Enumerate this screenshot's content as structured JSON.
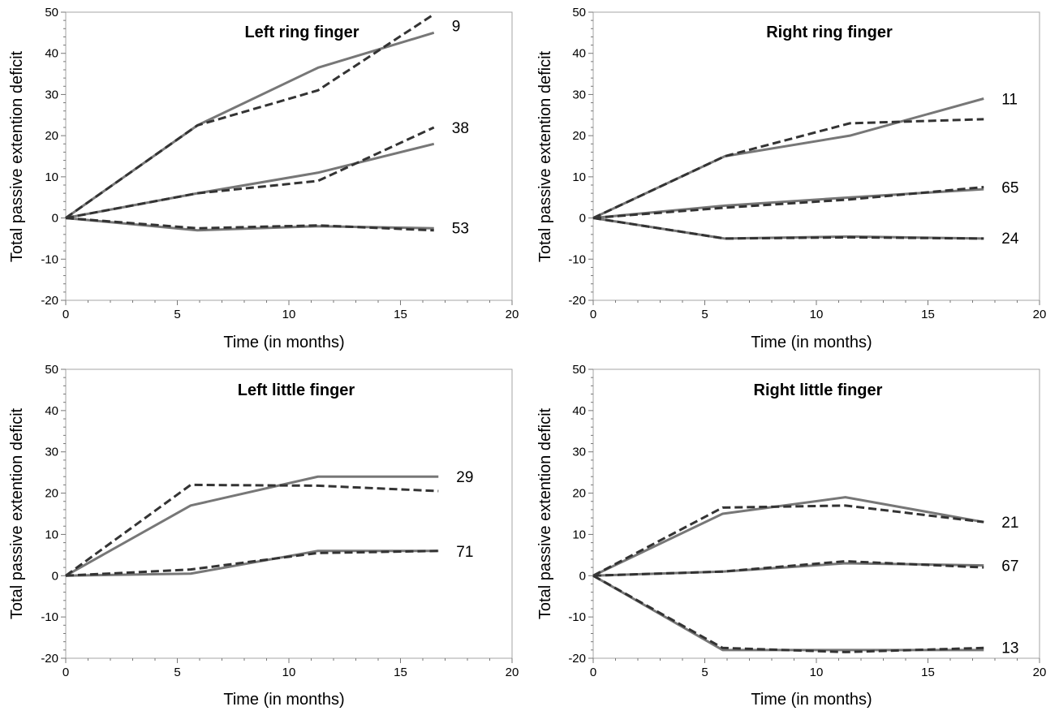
{
  "panels": [
    {
      "title": "Left ring finger",
      "xlabel": "Time (in months)",
      "ylabel": "Total passive extention deficit",
      "xlim": [
        0,
        20
      ],
      "ylim": [
        -20,
        50
      ],
      "xticks": [
        0,
        5,
        10,
        15,
        20
      ],
      "yticks": [
        -20,
        -10,
        0,
        10,
        20,
        30,
        40,
        50
      ]
    },
    {
      "title": "Right ring finger",
      "xlabel": "Time (in months)",
      "ylabel": "Total passive extention deficit",
      "xlim": [
        0,
        20
      ],
      "ylim": [
        -20,
        50
      ],
      "xticks": [
        0,
        5,
        10,
        15,
        20
      ],
      "yticks": [
        -20,
        -10,
        0,
        10,
        20,
        30,
        40,
        50
      ]
    },
    {
      "title": "Left little finger",
      "xlabel": "Time (in months)",
      "ylabel": "Total passive extention deficit",
      "xlim": [
        0,
        20
      ],
      "ylim": [
        -20,
        50
      ],
      "xticks": [
        0,
        5,
        10,
        15,
        20
      ],
      "yticks": [
        -20,
        -10,
        0,
        10,
        20,
        30,
        40,
        50
      ]
    },
    {
      "title": "Right little finger",
      "xlabel": "Time (in months)",
      "ylabel": "Total passive extention deficit",
      "xlim": [
        0,
        20
      ],
      "ylim": [
        -20,
        50
      ],
      "xticks": [
        0,
        5,
        10,
        15,
        20
      ],
      "yticks": [
        -20,
        -10,
        0,
        10,
        20,
        30,
        40,
        50
      ]
    }
  ],
  "chart_data": [
    {
      "type": "line",
      "title": "Left ring finger",
      "xlabel": "Time (in months)",
      "ylabel": "Total passive extention deficit",
      "xlim": [
        0,
        20
      ],
      "ylim": [
        -20,
        50
      ],
      "grid": false,
      "series": [
        {
          "label": "9",
          "solid_x": [
            0,
            5.9,
            11.3,
            16.5
          ],
          "solid_y": [
            0,
            22.5,
            36.5,
            45
          ],
          "dashed_x": [
            0,
            5.9,
            11.3,
            16.5
          ],
          "dashed_y": [
            0,
            22.5,
            31,
            49.5
          ]
        },
        {
          "label": "38",
          "solid_x": [
            0,
            5.9,
            11.3,
            16.5
          ],
          "solid_y": [
            0,
            6,
            11,
            18
          ],
          "dashed_x": [
            0,
            5.9,
            11.3,
            16.5
          ],
          "dashed_y": [
            0,
            6,
            9,
            22
          ]
        },
        {
          "label": "53",
          "solid_x": [
            0,
            5.9,
            11.3,
            16.5
          ],
          "solid_y": [
            0,
            -3,
            -2,
            -2.5
          ],
          "dashed_x": [
            0,
            5.9,
            11.3,
            16.5
          ],
          "dashed_y": [
            0,
            -2.5,
            -1.8,
            -3
          ]
        }
      ],
      "colors": {
        "solid": "#777777",
        "dashed": "#333333"
      }
    },
    {
      "type": "line",
      "title": "Right ring finger",
      "xlabel": "Time (in months)",
      "ylabel": "Total passive extention deficit",
      "xlim": [
        0,
        20
      ],
      "ylim": [
        -20,
        50
      ],
      "grid": false,
      "series": [
        {
          "label": "11",
          "solid_x": [
            0,
            5.9,
            11.5,
            17.5
          ],
          "solid_y": [
            0,
            15,
            20,
            29
          ],
          "dashed_x": [
            0,
            5.9,
            11.5,
            17.5
          ],
          "dashed_y": [
            0,
            15,
            23,
            24
          ]
        },
        {
          "label": "65",
          "solid_x": [
            0,
            5.9,
            11.5,
            17.5
          ],
          "solid_y": [
            0,
            3,
            5,
            7
          ],
          "dashed_x": [
            0,
            5.9,
            11.5,
            17.5
          ],
          "dashed_y": [
            0,
            2.5,
            4.5,
            7.5
          ]
        },
        {
          "label": "24",
          "solid_x": [
            0,
            5.9,
            11.5,
            17.5
          ],
          "solid_y": [
            0,
            -5,
            -4.5,
            -5
          ],
          "dashed_x": [
            0,
            5.9,
            11.5,
            17.5
          ],
          "dashed_y": [
            0,
            -5,
            -4.7,
            -5
          ]
        }
      ],
      "colors": {
        "solid": "#777777",
        "dashed": "#333333"
      }
    },
    {
      "type": "line",
      "title": "Left little finger",
      "xlabel": "Time (in months)",
      "ylabel": "Total passive extention deficit",
      "xlim": [
        0,
        20
      ],
      "ylim": [
        -20,
        50
      ],
      "grid": false,
      "series": [
        {
          "label": "29",
          "solid_x": [
            0,
            5.6,
            11.3,
            16.7
          ],
          "solid_y": [
            0,
            17,
            24,
            24
          ],
          "dashed_x": [
            0,
            5.6,
            11.3,
            16.7
          ],
          "dashed_y": [
            0,
            22,
            21.8,
            20.5
          ]
        },
        {
          "label": "71",
          "solid_x": [
            0,
            5.6,
            11.3,
            16.7
          ],
          "solid_y": [
            0,
            0.5,
            6,
            6
          ],
          "dashed_x": [
            0,
            5.6,
            11.3,
            16.7
          ],
          "dashed_y": [
            0,
            1.5,
            5.5,
            6
          ]
        }
      ],
      "colors": {
        "solid": "#777777",
        "dashed": "#333333"
      }
    },
    {
      "type": "line",
      "title": "Right little finger",
      "xlabel": "Time (in months)",
      "ylabel": "Total passive extention deficit",
      "xlim": [
        0,
        20
      ],
      "ylim": [
        -20,
        50
      ],
      "grid": false,
      "series": [
        {
          "label": "21",
          "solid_x": [
            0,
            5.8,
            11.3,
            17.5
          ],
          "solid_y": [
            0,
            15,
            19,
            13
          ],
          "dashed_x": [
            0,
            5.8,
            11.3,
            17.5
          ],
          "dashed_y": [
            0,
            16.5,
            17,
            13
          ]
        },
        {
          "label": "67",
          "solid_x": [
            0,
            5.8,
            11.3,
            17.5
          ],
          "solid_y": [
            0,
            1,
            3,
            2.5
          ],
          "dashed_x": [
            0,
            5.8,
            11.3,
            17.5
          ],
          "dashed_y": [
            0,
            1,
            3.5,
            2
          ]
        },
        {
          "label": "13",
          "solid_x": [
            0,
            5.8,
            11.3,
            17.5
          ],
          "solid_y": [
            0,
            -18,
            -18,
            -18
          ],
          "dashed_x": [
            0,
            5.8,
            11.3,
            17.5
          ],
          "dashed_y": [
            0,
            -17.5,
            -18.5,
            -17.5
          ]
        }
      ],
      "colors": {
        "solid": "#777777",
        "dashed": "#333333"
      }
    }
  ]
}
